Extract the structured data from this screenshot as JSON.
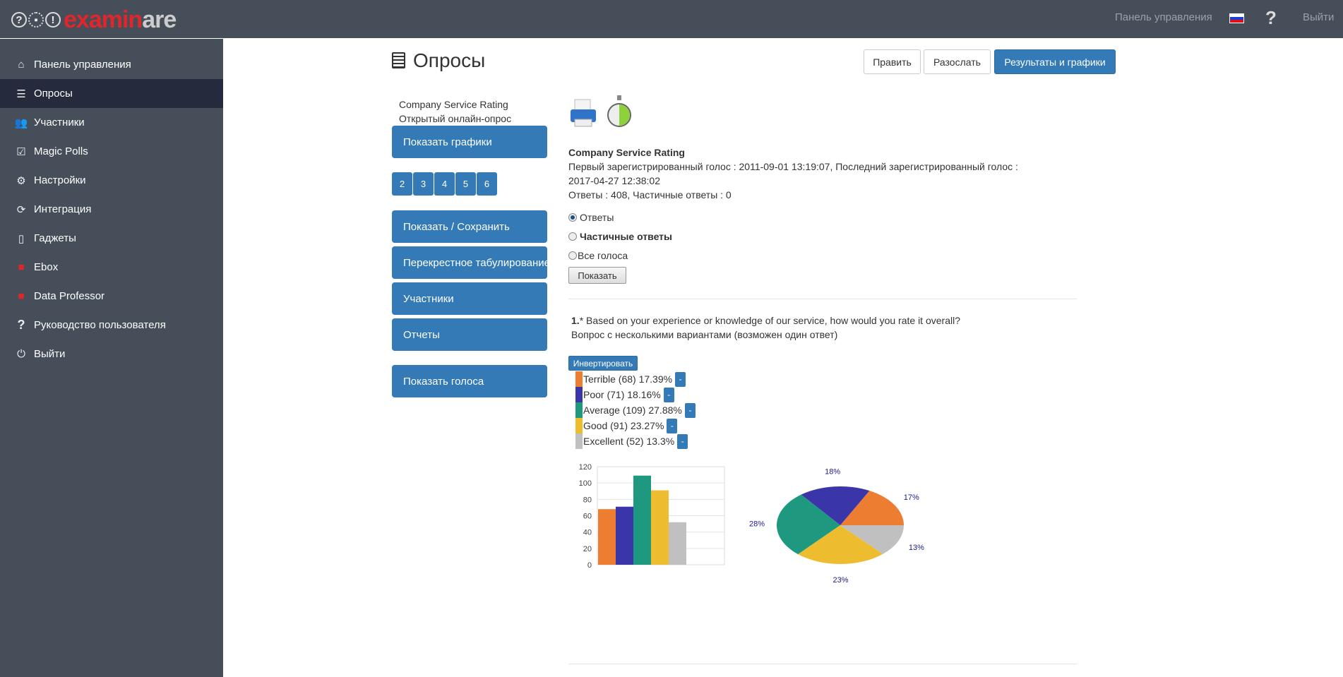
{
  "header": {
    "logo": "examinare",
    "dashboard_link": "Панель управления",
    "language": "ru-flag-icon",
    "help": "?",
    "logout": "Выйти"
  },
  "sidebar": {
    "items": [
      {
        "label": "Панель управления",
        "icon": "home-icon"
      },
      {
        "label": "Опросы",
        "icon": "survey-icon",
        "active": true
      },
      {
        "label": "Участники",
        "icon": "users-icon"
      },
      {
        "label": "Magic Polls",
        "icon": "checkbox-icon"
      },
      {
        "label": "Настройки",
        "icon": "gears-icon"
      },
      {
        "label": "Интеграция",
        "icon": "refresh-icon"
      },
      {
        "label": "Гаджеты",
        "icon": "tablet-icon"
      },
      {
        "label": "Ebox",
        "icon": "gift-box-icon"
      },
      {
        "label": "Data Professor",
        "icon": "gift-box-icon"
      },
      {
        "label": "Руководство пользователя",
        "icon": "question-icon"
      },
      {
        "label": "Выйти",
        "icon": "power-icon"
      }
    ]
  },
  "page": {
    "title": "Опросы",
    "buttons": {
      "edit": "Править",
      "send": "Разослать",
      "results": "Результаты и графики"
    }
  },
  "left": {
    "survey_name": "Company Service Rating",
    "survey_type": "Открытый онлайн-опрос",
    "show_charts": "Показать графики",
    "pages": [
      "2",
      "3",
      "4",
      "5",
      "6"
    ],
    "show_save": "Показать / Сохранить",
    "crosstab": "Перекрестное табулирование",
    "participants": "Участники",
    "reports": "Отчеты",
    "show_votes": "Показать голоса"
  },
  "summary": {
    "title": "Company Service Rating",
    "line1": "Первый зарегистрированный голос : 2011-09-01 13:19:07, Последний зарегистрированный голос :",
    "line2": "2017-04-27 12:38:02",
    "line3": "Ответы : 408, Частичные ответы : 0",
    "radios": [
      {
        "label": "Ответы",
        "checked": true
      },
      {
        "label": "Частичные ответы",
        "checked": false
      },
      {
        "label": "Все голоса",
        "checked": false
      }
    ],
    "show_button": "Показать"
  },
  "question": {
    "number": "1.",
    "text": "* Based on your experience or knowledge of our service, how would you rate it overall?",
    "type": "Вопрос с несколькими вариантами (возможен один ответ)",
    "invert_button": "Инвертировать",
    "minus": "-",
    "legend": [
      "Terrible (68) 17.39%",
      "Poor (71) 18.16%",
      "Average (109) 27.88%",
      "Good (91) 23.27%",
      "Excellent (52) 13.3%"
    ]
  },
  "chart_data": [
    {
      "type": "bar",
      "categories": [
        "Terrible",
        "Poor",
        "Average",
        "Good",
        "Excellent"
      ],
      "values": [
        68,
        71,
        109,
        91,
        52
      ],
      "colors": [
        "#ed7d31",
        "#3a35a8",
        "#1f9880",
        "#edbd2f",
        "#c0c0c0"
      ],
      "ylim": [
        0,
        120
      ],
      "yticks": [
        "0",
        "20",
        "40",
        "60",
        "80",
        "100",
        "120"
      ],
      "grid": true
    },
    {
      "type": "pie",
      "categories": [
        "Terrible",
        "Poor",
        "Average",
        "Good",
        "Excellent"
      ],
      "values": [
        17.39,
        18.16,
        27.88,
        23.27,
        13.3
      ],
      "labels": [
        "17%",
        "18%",
        "28%",
        "23%",
        "13%"
      ],
      "colors": [
        "#ed7d31",
        "#3a35a8",
        "#1f9880",
        "#edbd2f",
        "#c0c0c0"
      ]
    }
  ]
}
